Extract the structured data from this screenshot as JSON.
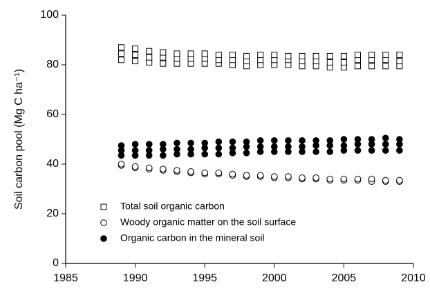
{
  "chart_data": {
    "type": "scatter",
    "y_label": "Soil carbon pool (Mg C ha⁻¹)",
    "xlim": [
      1985,
      2010
    ],
    "xticks": [
      1985,
      1990,
      1995,
      2000,
      2005,
      2010
    ],
    "ylim": [
      0,
      100
    ],
    "yticks": [
      0,
      20,
      40,
      60,
      80,
      100
    ],
    "legend": "lower left",
    "series": [
      {
        "name": "Total soil organic carbon",
        "marker": "square",
        "color": "#000000",
        "filled": false,
        "x": [
          1989,
          1989,
          1989,
          1990,
          1990,
          1990,
          1991,
          1991,
          1991,
          1992,
          1992,
          1992,
          1993,
          1993,
          1993,
          1994,
          1994,
          1994,
          1995,
          1995,
          1995,
          1996,
          1996,
          1996,
          1997,
          1997,
          1997,
          1998,
          1998,
          1998,
          1999,
          1999,
          1999,
          2000,
          2000,
          2000,
          2001,
          2001,
          2001,
          2002,
          2002,
          2002,
          2003,
          2003,
          2003,
          2004,
          2004,
          2004,
          2005,
          2005,
          2005,
          2006,
          2006,
          2006,
          2007,
          2007,
          2007,
          2008,
          2008,
          2008,
          2009,
          2009,
          2009
        ],
        "values": [
          82,
          84.5,
          87,
          81.5,
          84,
          86.5,
          81,
          83,
          85.5,
          80.5,
          83,
          85,
          80.5,
          82.5,
          84.5,
          80.5,
          82.5,
          84.5,
          80.5,
          82.5,
          84.5,
          80.5,
          82,
          84,
          80,
          82,
          84,
          79.5,
          81.5,
          83.5,
          80,
          82,
          84,
          80,
          82,
          84,
          80,
          82,
          83.5,
          79.5,
          81.5,
          83.5,
          79.5,
          81.5,
          83.5,
          79,
          81,
          83.5,
          79,
          81,
          83.5,
          79.5,
          82,
          84,
          79.5,
          82,
          84,
          79.5,
          82,
          84,
          79.5,
          81.5,
          84
        ]
      },
      {
        "name": "Woody organic matter on the soil surface",
        "marker": "circle",
        "color": "#000000",
        "filled": false,
        "x": [
          1989,
          1989,
          1990,
          1990,
          1991,
          1991,
          1992,
          1992,
          1993,
          1993,
          1994,
          1994,
          1995,
          1995,
          1996,
          1996,
          1997,
          1997,
          1998,
          1998,
          1999,
          1999,
          2000,
          2000,
          2001,
          2001,
          2002,
          2002,
          2003,
          2003,
          2004,
          2004,
          2005,
          2005,
          2006,
          2006,
          2007,
          2007,
          2008,
          2008,
          2009,
          2009
        ],
        "values": [
          39.5,
          40,
          38.5,
          39,
          38,
          38.5,
          37.5,
          38,
          37,
          37.5,
          36.5,
          37,
          36,
          36.5,
          36,
          36.5,
          35.5,
          36,
          35,
          35.5,
          35,
          35.5,
          34.5,
          35,
          34.5,
          35,
          34,
          34.5,
          34,
          34.5,
          33.5,
          34,
          33.5,
          34,
          33.5,
          34,
          33,
          34,
          33,
          33.5,
          33,
          33.5
        ]
      },
      {
        "name": "Organic carbon in the mineral soil",
        "marker": "circle",
        "color": "#000000",
        "filled": true,
        "x": [
          1989,
          1989,
          1989,
          1990,
          1990,
          1990,
          1991,
          1991,
          1991,
          1992,
          1992,
          1992,
          1993,
          1993,
          1993,
          1994,
          1994,
          1994,
          1995,
          1995,
          1995,
          1996,
          1996,
          1996,
          1997,
          1997,
          1997,
          1998,
          1998,
          1998,
          1999,
          1999,
          1999,
          2000,
          2000,
          2000,
          2001,
          2001,
          2001,
          2002,
          2002,
          2002,
          2003,
          2003,
          2003,
          2004,
          2004,
          2004,
          2005,
          2005,
          2005,
          2006,
          2006,
          2006,
          2007,
          2007,
          2007,
          2008,
          2008,
          2008,
          2009,
          2009,
          2009
        ],
        "values": [
          43.5,
          45.5,
          47.5,
          43.5,
          45.5,
          48,
          43.5,
          45.5,
          48,
          43.5,
          46,
          48,
          44,
          46,
          48.5,
          44,
          46,
          48.5,
          44,
          46.5,
          48.5,
          44,
          46.5,
          49,
          44.5,
          46.5,
          49,
          44.5,
          47,
          49,
          45,
          47,
          49.5,
          45,
          47,
          49.5,
          45,
          47,
          49.5,
          45,
          47,
          49.5,
          45,
          47.5,
          49.5,
          45,
          47.5,
          49.5,
          45.5,
          47.5,
          50,
          45.5,
          48,
          50,
          45.5,
          48,
          50,
          45.5,
          48,
          50.5,
          45.5,
          48,
          50
        ]
      }
    ]
  }
}
